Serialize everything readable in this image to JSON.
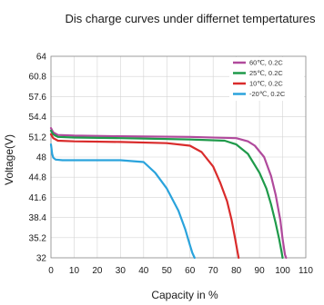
{
  "chart_data": {
    "type": "line",
    "title": "Dis charge curves under differnet tempertatures",
    "xlabel": "Capacity in %",
    "ylabel": "Voltage(V)",
    "xlim": [
      0,
      110
    ],
    "ylim": [
      32,
      64
    ],
    "x_ticks": [
      "0",
      "10",
      "20",
      "30",
      "40",
      "50",
      "60",
      "70",
      "80",
      "90",
      "100",
      "110"
    ],
    "y_ticks": [
      "32",
      "35.2",
      "38.4",
      "41.6",
      "44.8",
      "48",
      "51.2",
      "54.4",
      "57.6",
      "60.8",
      "64"
    ],
    "grid": true,
    "legend_position": "top-right",
    "series": [
      {
        "name": "60℃, 0.2C",
        "color": "#b04a9c",
        "x": [
          0,
          1,
          3,
          10,
          30,
          60,
          80,
          85,
          88,
          92,
          95,
          97,
          99,
          100,
          101,
          101.5
        ],
        "y": [
          52.6,
          51.9,
          51.5,
          51.4,
          51.3,
          51.2,
          51.0,
          50.5,
          49.8,
          48.0,
          45.0,
          42.0,
          38.0,
          35.0,
          32.5,
          32.0
        ]
      },
      {
        "name": "25℃, 0.2C",
        "color": "#1f9a4a",
        "x": [
          0,
          1,
          3,
          10,
          30,
          60,
          75,
          80,
          85,
          90,
          93,
          95,
          97,
          98.5,
          99.5,
          100
        ],
        "y": [
          52.2,
          51.6,
          51.2,
          51.1,
          51.0,
          50.8,
          50.6,
          50.0,
          48.5,
          45.5,
          43.0,
          40.5,
          37.5,
          35.0,
          33.0,
          32.0
        ]
      },
      {
        "name": "10℃, 0.2C",
        "color": "#d92b2b",
        "x": [
          0,
          1,
          3,
          10,
          30,
          50,
          60,
          65,
          70,
          73,
          76,
          78,
          79.5,
          80.5,
          81
        ],
        "y": [
          51.6,
          51.0,
          50.6,
          50.5,
          50.4,
          50.2,
          49.8,
          48.8,
          46.5,
          44.0,
          41.0,
          38.0,
          35.0,
          33.0,
          32.0
        ]
      },
      {
        "name": "-20℃, 0.2C",
        "color": "#2aa3dc",
        "x": [
          0,
          0.5,
          1,
          2,
          5,
          10,
          30,
          40,
          45,
          50,
          55,
          58,
          60,
          61,
          62
        ],
        "y": [
          50.0,
          48.5,
          47.9,
          47.6,
          47.5,
          47.5,
          47.5,
          47.2,
          45.5,
          43.0,
          39.5,
          36.5,
          34.0,
          32.8,
          32.0
        ]
      }
    ]
  }
}
